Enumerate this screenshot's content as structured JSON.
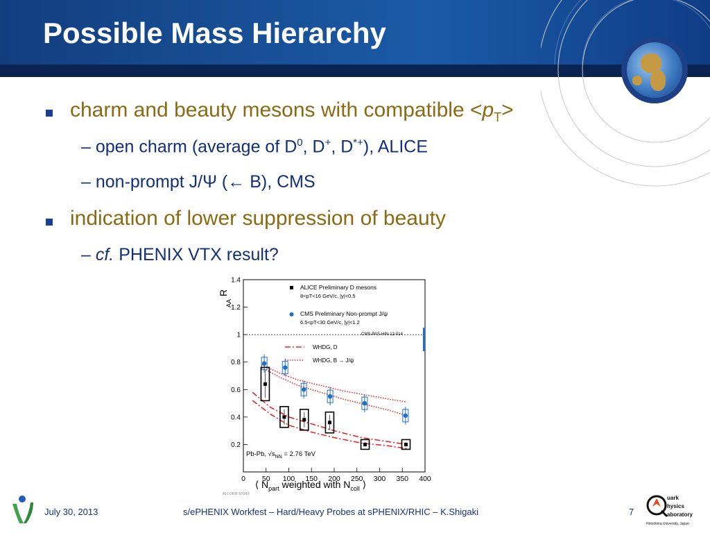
{
  "slide": {
    "title": "Possible Mass Hierarchy",
    "bullets": [
      {
        "text": "charm and beauty mesons with compatible <pT>",
        "subs": [
          "open charm (average of D0, D+, D*+), ALICE",
          "non-prompt J/Ψ (← B), CMS"
        ]
      },
      {
        "text": "indication of lower suppression of beauty",
        "subs": [
          "cf. PHENIX VTX result?"
        ]
      }
    ]
  },
  "footer": {
    "date": "July 30, 2013",
    "center": "s/ePHENIX Workfest – Hard/Heavy Probes at sPHENIX/RHIC – K.Shigaki",
    "page": "7",
    "logo_text": [
      "uark",
      "hysics",
      "aboratory",
      "Hiroshima University, Japan"
    ]
  },
  "colors": {
    "accent_gold": "#8a6a14",
    "text_blue": "#12307a",
    "header_blue": "#1b5aa6",
    "alice": "#000000",
    "cms": "#1f6fc4",
    "theory": "#e8262a"
  },
  "icons": [
    "globe-icon",
    "bullet-square-icon",
    "lab-logo-icon",
    "left-logo-icon"
  ],
  "chart_data": {
    "type": "scatter",
    "ylabel": "R_AA",
    "xlabel": "⟨ N_part weighted with N_coll ⟩",
    "xlim": [
      0,
      400
    ],
    "ylim": [
      0,
      1.4
    ],
    "xticks": [
      0,
      50,
      100,
      150,
      200,
      250,
      300,
      350,
      400
    ],
    "yticks": [
      0.2,
      0.4,
      0.6,
      0.8,
      1,
      1.2,
      1.4
    ],
    "reference_line": 1,
    "legend": [
      "ALICE Preliminary D mesons",
      "8<pT<16 GeV/c, |y|<0.5",
      "CMS Preliminary Non-prompt J/ψ",
      "6.5<pT<30 GeV/c, |y|<1.2",
      "CMS-PAS-HIN-12-014",
      "WHDG, D",
      "WHDG, B → J/ψ"
    ],
    "annotation": "Pb-Pb, √sNN = 2.76 TeV",
    "tag": "ALI-DER-52943",
    "series": [
      {
        "name": "ALICE Preliminary D mesons",
        "x": [
          48,
          90,
          134,
          190,
          268,
          358
        ],
        "y": [
          0.64,
          0.4,
          0.38,
          0.36,
          0.2,
          0.2
        ]
      },
      {
        "name": "CMS Preliminary Non-prompt J/ψ",
        "x": [
          46,
          92,
          133,
          191,
          267,
          357
        ],
        "y": [
          0.79,
          0.76,
          0.6,
          0.55,
          0.5,
          0.41
        ]
      }
    ],
    "curves": [
      {
        "name": "WHDG, D",
        "style": "dash-dot",
        "x": [
          20,
          60,
          100,
          150,
          200,
          260,
          320,
          360
        ],
        "y": [
          0.52,
          0.42,
          0.34,
          0.29,
          0.25,
          0.21,
          0.19,
          0.17
        ]
      },
      {
        "name": "WHDG, D",
        "style": "dash-dot",
        "x": [
          20,
          60,
          100,
          150,
          200,
          260,
          320,
          360
        ],
        "y": [
          0.58,
          0.47,
          0.4,
          0.35,
          0.3,
          0.25,
          0.22,
          0.2
        ]
      },
      {
        "name": "WHDG, B → J/ψ",
        "style": "dotted",
        "x": [
          40,
          80,
          120,
          170,
          220,
          270,
          320,
          360
        ],
        "y": [
          0.76,
          0.69,
          0.63,
          0.58,
          0.53,
          0.49,
          0.45,
          0.41
        ]
      },
      {
        "name": "WHDG, B → J/ψ",
        "style": "dotted",
        "x": [
          40,
          80,
          120,
          170,
          220,
          270,
          320,
          360
        ],
        "y": [
          0.78,
          0.72,
          0.67,
          0.63,
          0.59,
          0.56,
          0.53,
          0.51
        ]
      }
    ]
  }
}
